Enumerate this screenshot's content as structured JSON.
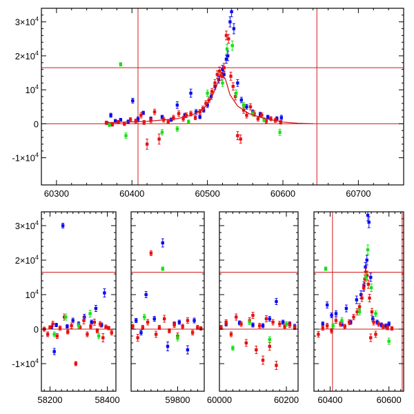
{
  "colors": {
    "blue": "#0b0bf0",
    "red": "#e81010",
    "green": "#18e018",
    "refline": "#d01818",
    "axis": "#000000"
  },
  "chart_data": [
    {
      "type": "scatter",
      "panel": "top",
      "xlim": [
        60280,
        60760
      ],
      "ylim": [
        -18000,
        34000
      ],
      "xticks": [
        60300,
        60400,
        60500,
        60600,
        60700
      ],
      "xtick_labels": [
        "60300",
        "60400",
        "60500",
        "60600",
        "60700"
      ],
      "yticks": [
        -10000,
        0,
        10000,
        20000,
        30000
      ],
      "ytick_labels": [
        {
          "mantissa": "-1×10",
          "exp": "4"
        },
        {
          "mantissa": "0",
          "exp": ""
        },
        {
          "mantissa": "10",
          "exp": "4"
        },
        {
          "mantissa": "2×10",
          "exp": "4"
        },
        {
          "mantissa": "3×10",
          "exp": "4"
        }
      ],
      "hlines": [
        0,
        16500
      ],
      "vlines": [
        60408,
        60645
      ],
      "model_curve": {
        "x": [
          60365,
          60420,
          60460,
          60480,
          60495,
          60505,
          60512,
          60518,
          60524,
          60530,
          60540,
          60555,
          60575,
          60600,
          60620,
          60640
        ],
        "y": [
          300,
          700,
          1500,
          2600,
          4500,
          7500,
          11000,
          15000,
          13000,
          8500,
          5200,
          3000,
          1600,
          500,
          150,
          0
        ]
      },
      "series": [
        {
          "color": "blue",
          "x": [
            60367,
            60372,
            60378,
            60385,
            60395,
            60401,
            60408,
            60415,
            60425,
            60440,
            60452,
            60460,
            60470,
            60478,
            60485,
            60490,
            60495,
            60500,
            60505,
            60510,
            60515,
            60520,
            60522,
            60525,
            60527,
            60530,
            60532,
            60535,
            60540,
            60545,
            60552,
            60560,
            60570,
            60580,
            60592,
            60598
          ],
          "y": [
            200,
            2500,
            800,
            1200,
            600,
            6800,
            1400,
            3200,
            1500,
            2000,
            1200,
            5500,
            2500,
            9000,
            3500,
            2000,
            4000,
            5500,
            8000,
            11000,
            13000,
            16000,
            14500,
            19000,
            20000,
            30000,
            33000,
            28000,
            12000,
            7000,
            5000,
            3500,
            2800,
            2000,
            1500,
            1800
          ],
          "err": [
            400,
            600,
            500,
            400,
            500,
            700,
            600,
            500,
            500,
            500,
            500,
            1000,
            600,
            1200,
            700,
            500,
            600,
            700,
            800,
            900,
            1000,
            1200,
            1000,
            1200,
            1400,
            1500,
            1500,
            1500,
            1000,
            800,
            700,
            600,
            600,
            500,
            600,
            700
          ]
        },
        {
          "color": "red",
          "x": [
            60366,
            60374,
            60382,
            60390,
            60398,
            60405,
            60412,
            60416,
            60420,
            60425,
            60430,
            60436,
            60442,
            60448,
            60455,
            60462,
            60468,
            60472,
            60478,
            60484,
            60490,
            60494,
            60498,
            60502,
            60506,
            60510,
            60513,
            60516,
            60519,
            60522,
            60525,
            60528,
            60531,
            60534,
            60537,
            60540,
            60544,
            60548,
            60552,
            60557,
            60562,
            60567,
            60572,
            60578,
            60584,
            60590,
            60597
          ],
          "y": [
            300,
            -200,
            500,
            0,
            1200,
            800,
            2500,
            400,
            -6000,
            1000,
            3500,
            -4500,
            1200,
            600,
            1800,
            3000,
            1500,
            2500,
            3000,
            1800,
            3500,
            4500,
            6000,
            7000,
            9500,
            12000,
            14500,
            15500,
            14000,
            16500,
            26000,
            25000,
            14000,
            11000,
            8000,
            -3500,
            -4500,
            4000,
            2500,
            5000,
            3000,
            1500,
            2500,
            800,
            1500,
            1000,
            500
          ],
          "err": [
            500,
            500,
            500,
            500,
            600,
            600,
            800,
            600,
            1500,
            700,
            800,
            1500,
            700,
            600,
            700,
            800,
            700,
            700,
            700,
            600,
            700,
            700,
            800,
            800,
            900,
            1000,
            1100,
            1200,
            1200,
            1300,
            1300,
            1300,
            1200,
            1100,
            1000,
            1200,
            1200,
            900,
            800,
            900,
            800,
            700,
            700,
            600,
            600,
            600,
            600
          ]
        },
        {
          "color": "green",
          "x": [
            60370,
            60385,
            60392,
            60440,
            60460,
            60475,
            60500,
            60520,
            60526,
            60533,
            60538,
            60548,
            60560,
            60575,
            60596
          ],
          "y": [
            -300,
            17500,
            -3500,
            -2500,
            -1500,
            600,
            9000,
            12000,
            22000,
            23000,
            9000,
            5500,
            3000,
            1200,
            -2500
          ],
          "err": [
            500,
            500,
            800,
            800,
            700,
            500,
            900,
            1000,
            1400,
            1400,
            1000,
            800,
            700,
            600,
            900
          ]
        }
      ]
    },
    {
      "type": "scatter",
      "panel": "bottom",
      "broken_x_axis": true,
      "segments": [
        {
          "xlim": [
            58170,
            58430
          ],
          "xticks": [
            58200,
            58400
          ],
          "xtick_labels": [
            "58200",
            "58400"
          ],
          "ytick_labels_shown": true
        },
        {
          "xlim": [
            59660,
            59880
          ],
          "xticks": [
            59800
          ],
          "xtick_labels": [
            "59800"
          ],
          "ytick_labels_shown": false
        },
        {
          "xlim": [
            60000,
            60235
          ],
          "xticks": [
            60000,
            60200
          ],
          "xtick_labels": [
            "60000",
            "60200"
          ],
          "ytick_labels_shown": false
        },
        {
          "xlim": [
            60345,
            60650
          ],
          "xticks": [
            60400,
            60600
          ],
          "xtick_labels": [
            "60400",
            "60600"
          ],
          "ytick_labels_shown": false
        }
      ],
      "ylim": [
        -18000,
        34000
      ],
      "yticks": [
        -10000,
        0,
        10000,
        20000,
        30000
      ],
      "ytick_labels": [
        {
          "mantissa": "-1×10",
          "exp": "4"
        },
        {
          "mantissa": "0",
          "exp": ""
        },
        {
          "mantissa": "10",
          "exp": "4"
        },
        {
          "mantissa": "2×10",
          "exp": "4"
        },
        {
          "mantissa": "3×10",
          "exp": "4"
        }
      ],
      "hlines": [
        0,
        16500
      ],
      "vlines": [
        60408,
        60645
      ],
      "series": [
        {
          "color": "blue",
          "x": [
            58205,
            58215,
            58222,
            58245,
            58260,
            58280,
            58300,
            58320,
            58345,
            58360,
            58380,
            58390,
            59675,
            59690,
            59705,
            59730,
            59755,
            59770,
            59790,
            59805,
            59830,
            59850,
            60020,
            60060,
            60100,
            60130,
            60150,
            60170,
            60190,
            60210,
            60225,
            60375,
            60390,
            60405,
            60420,
            60440,
            60455,
            60470,
            60490,
            60505,
            60515,
            60520,
            60525,
            60528,
            60532,
            60538,
            60545,
            60560,
            60575,
            60590,
            60600
          ],
          "y": [
            500,
            -6500,
            1200,
            30000,
            800,
            2500,
            1500,
            3500,
            2000,
            6000,
            1200,
            10500,
            2500,
            -1000,
            10000,
            3000,
            25000,
            -5000,
            1500,
            2000,
            -6000,
            2500,
            1500,
            1800,
            1200,
            1000,
            3000,
            8000,
            2000,
            1500,
            800,
            1500,
            7000,
            4000,
            4500,
            1500,
            6000,
            2000,
            8500,
            10000,
            12500,
            18000,
            20000,
            33000,
            31000,
            15000,
            3000,
            2000,
            1200,
            900,
            1500
          ],
          "err": [
            500,
            900,
            500,
            700,
            500,
            700,
            600,
            800,
            600,
            900,
            600,
            1200,
            600,
            700,
            900,
            700,
            1200,
            1300,
            600,
            600,
            1200,
            700,
            600,
            600,
            600,
            600,
            700,
            900,
            600,
            600,
            600,
            600,
            900,
            700,
            800,
            600,
            1000,
            600,
            1100,
            1100,
            1200,
            1300,
            1400,
            1600,
            1600,
            1200,
            700,
            600,
            600,
            600,
            600
          ]
        },
        {
          "color": "red",
          "x": [
            58180,
            58192,
            58200,
            58210,
            58225,
            58235,
            58250,
            58262,
            58275,
            58290,
            58305,
            58318,
            58330,
            58342,
            58355,
            58365,
            58375,
            58385,
            58395,
            58405,
            58415,
            59665,
            59680,
            59695,
            59710,
            59720,
            59735,
            59745,
            59760,
            59775,
            59790,
            59800,
            59815,
            59830,
            59845,
            59860,
            59870,
            60005,
            60020,
            60035,
            60050,
            60065,
            60080,
            60090,
            60100,
            60110,
            60120,
            60130,
            60140,
            60150,
            60160,
            60170,
            60180,
            60195,
            60210,
            60225,
            60360,
            60375,
            60390,
            60405,
            60420,
            60435,
            60450,
            60465,
            60480,
            60492,
            60500,
            60508,
            60514,
            60518,
            60522,
            60526,
            60530,
            60534,
            60538,
            60542,
            60548,
            60555,
            60565,
            60580,
            60595,
            60610
          ],
          "y": [
            0,
            -1500,
            500,
            1500,
            -2000,
            300,
            3500,
            -800,
            1000,
            -10000,
            500,
            2500,
            -1500,
            800,
            2000,
            -500,
            1500,
            -2500,
            600,
            300,
            -1000,
            800,
            -2500,
            500,
            2000,
            22000,
            -1500,
            500,
            3000,
            -500,
            1200,
            -2000,
            800,
            2500,
            -1000,
            500,
            200,
            500,
            2000,
            -1500,
            3500,
            1500,
            -4000,
            2500,
            4000,
            -6000,
            1000,
            -9000,
            3000,
            -5000,
            2000,
            -10500,
            1500,
            800,
            1200,
            500,
            -1500,
            300,
            1000,
            -500,
            2500,
            1500,
            800,
            2000,
            3500,
            5000,
            6500,
            9000,
            12000,
            14500,
            16500,
            15500,
            13000,
            9000,
            -2500,
            5000,
            2000,
            -1500,
            1500,
            800,
            400,
            200
          ],
          "err": [
            600,
            700,
            500,
            800,
            700,
            600,
            900,
            600,
            800,
            600,
            500,
            1000,
            700,
            600,
            900,
            600,
            700,
            1200,
            600,
            500,
            700,
            600,
            1000,
            600,
            800,
            700,
            900,
            600,
            1000,
            600,
            700,
            900,
            600,
            800,
            700,
            600,
            500,
            600,
            700,
            700,
            900,
            700,
            1000,
            800,
            900,
            1100,
            700,
            1200,
            900,
            1100,
            800,
            1200,
            800,
            600,
            700,
            600,
            800,
            600,
            700,
            700,
            800,
            700,
            600,
            700,
            800,
            900,
            900,
            1000,
            1100,
            1200,
            1300,
            1300,
            1200,
            1100,
            1100,
            1000,
            800,
            900,
            700,
            600,
            600,
            500
          ]
        },
        {
          "color": "green",
          "x": [
            58215,
            58255,
            58300,
            58340,
            58370,
            59700,
            59755,
            59800,
            60040,
            60090,
            60150,
            60200,
            60385,
            60410,
            60440,
            60500,
            60522,
            60528,
            60540,
            60555,
            60600
          ],
          "y": [
            -1500,
            3500,
            1000,
            4500,
            -2000,
            3500,
            17500,
            -2500,
            -5500,
            2000,
            -3000,
            1500,
            17500,
            1000,
            2500,
            5000,
            15000,
            23000,
            12000,
            4500,
            -3500
          ],
          "err": [
            700,
            900,
            700,
            1000,
            800,
            800,
            500,
            900,
            600,
            700,
            800,
            700,
            500,
            700,
            800,
            900,
            1200,
            1400,
            1100,
            800,
            900
          ]
        }
      ]
    }
  ]
}
